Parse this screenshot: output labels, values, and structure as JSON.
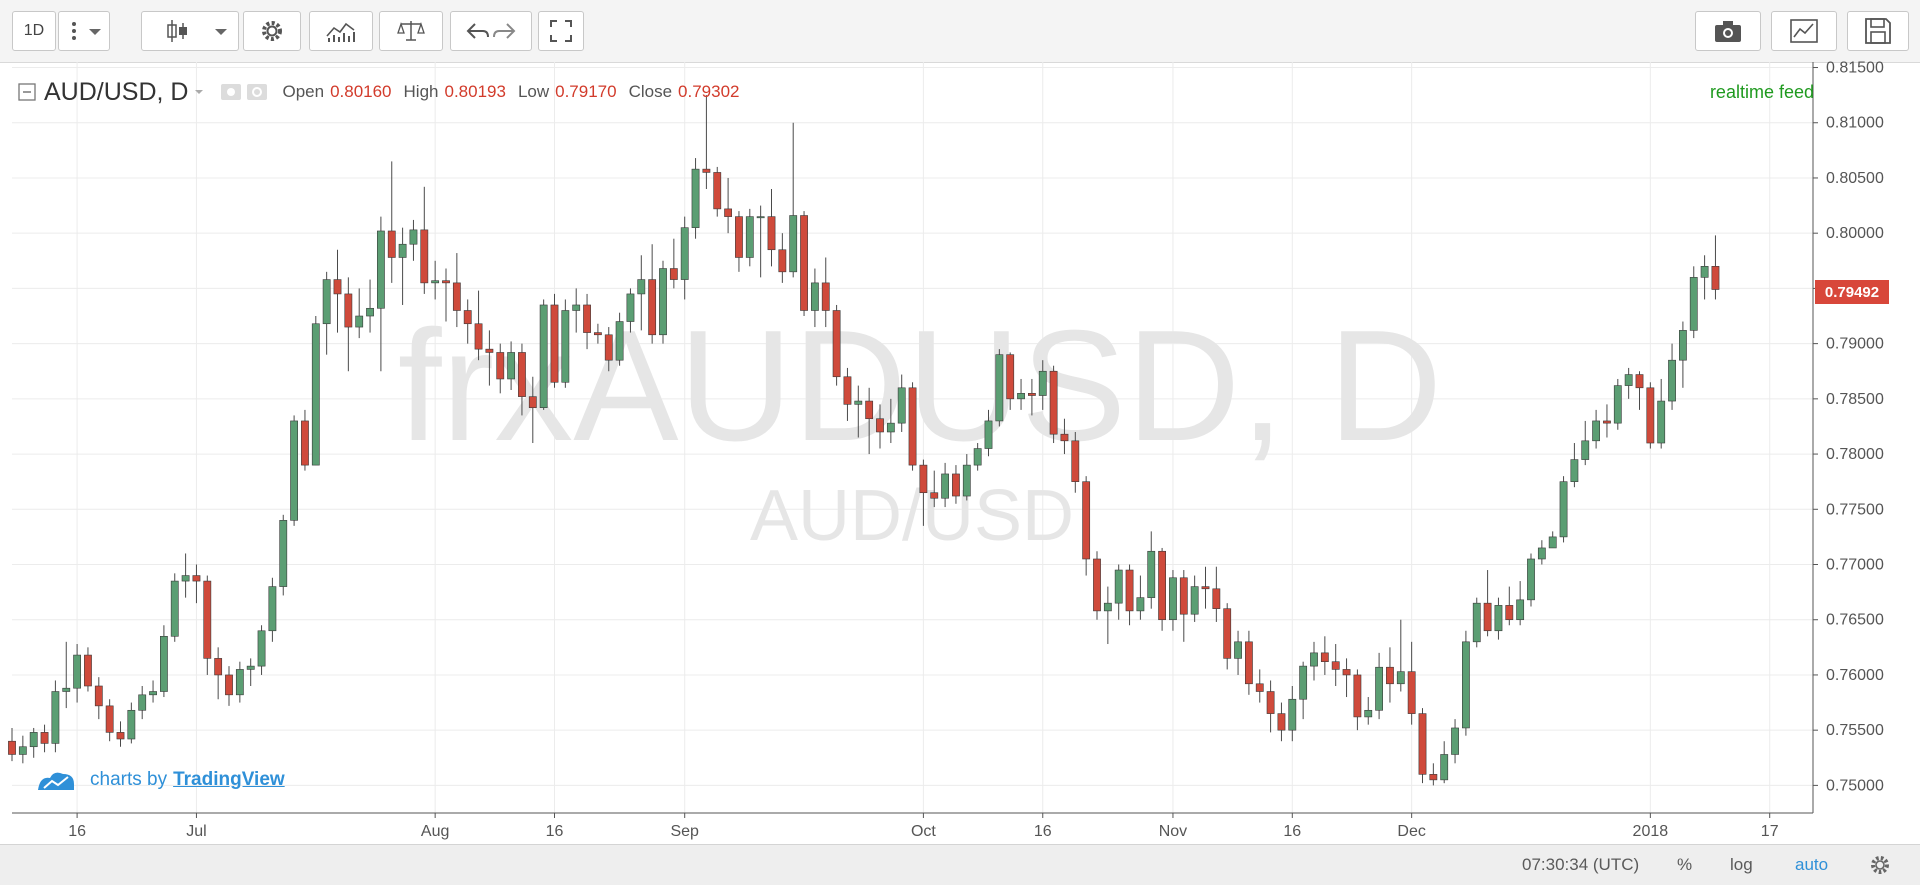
{
  "toolbar": {
    "interval": "1D"
  },
  "legend": {
    "symbol": "AUD/USD, D",
    "open_label": "Open",
    "open": "0.80160",
    "high_label": "High",
    "high": "0.80193",
    "low_label": "Low",
    "low": "0.79170",
    "close_label": "Close",
    "close": "0.79302"
  },
  "realtime_label": "realtime feed",
  "watermark": {
    "main": "frxAUDUSD, D",
    "sub": "AUD/USD"
  },
  "brand": {
    "prefix": "charts by",
    "name": "TradingView"
  },
  "last_price": "0.79492",
  "status_bar": {
    "time": "07:30:34 (UTC)",
    "percent": "%",
    "log": "log",
    "auto": "auto"
  },
  "colors": {
    "up": "#5b9e73",
    "down": "#cf4a3b",
    "accent": "#2f90d8",
    "realtime": "#1f9a1f"
  },
  "chart_data": {
    "type": "candlestick",
    "y_ticks": [
      "0.81500",
      "0.81000",
      "0.80500",
      "0.80000",
      "0.79500",
      "0.79000",
      "0.78500",
      "0.78000",
      "0.77500",
      "0.77000",
      "0.76500",
      "0.76000",
      "0.75500",
      "0.75000"
    ],
    "ylim": [
      0.7475,
      0.8155
    ],
    "x_ticks": [
      {
        "label": "16",
        "index": 6
      },
      {
        "label": "Jul",
        "index": 17
      },
      {
        "label": "Aug",
        "index": 39
      },
      {
        "label": "16",
        "index": 50
      },
      {
        "label": "Sep",
        "index": 62
      },
      {
        "label": "Oct",
        "index": 84
      },
      {
        "label": "16",
        "index": 95
      },
      {
        "label": "Nov",
        "index": 107
      },
      {
        "label": "16",
        "index": 118
      },
      {
        "label": "Dec",
        "index": 129
      },
      {
        "label": "2018",
        "index": 151
      },
      {
        "label": "17",
        "index": 162
      }
    ],
    "candles": [
      [
        0.754,
        0.7528,
        0.7552,
        0.7522
      ],
      [
        0.7528,
        0.7535,
        0.7545,
        0.752
      ],
      [
        0.7535,
        0.7548,
        0.7552,
        0.7525
      ],
      [
        0.7548,
        0.7538,
        0.7555,
        0.753
      ],
      [
        0.7538,
        0.7585,
        0.7595,
        0.753
      ],
      [
        0.7585,
        0.7588,
        0.763,
        0.757
      ],
      [
        0.7588,
        0.7618,
        0.7628,
        0.7575
      ],
      [
        0.7618,
        0.759,
        0.7625,
        0.7585
      ],
      [
        0.759,
        0.7572,
        0.7598,
        0.756
      ],
      [
        0.7572,
        0.7548,
        0.7578,
        0.754
      ],
      [
        0.7548,
        0.7542,
        0.7558,
        0.7535
      ],
      [
        0.7542,
        0.7568,
        0.7575,
        0.7538
      ],
      [
        0.7568,
        0.7582,
        0.759,
        0.756
      ],
      [
        0.7582,
        0.7585,
        0.7595,
        0.7575
      ],
      [
        0.7585,
        0.7635,
        0.7645,
        0.758
      ],
      [
        0.7635,
        0.7685,
        0.7692,
        0.763
      ],
      [
        0.7685,
        0.769,
        0.771,
        0.767
      ],
      [
        0.769,
        0.7685,
        0.77,
        0.7665
      ],
      [
        0.7685,
        0.7615,
        0.769,
        0.76
      ],
      [
        0.7615,
        0.76,
        0.7625,
        0.7578
      ],
      [
        0.76,
        0.7582,
        0.7608,
        0.7572
      ],
      [
        0.7582,
        0.7605,
        0.7612,
        0.7575
      ],
      [
        0.7605,
        0.7608,
        0.7615,
        0.759
      ],
      [
        0.7608,
        0.764,
        0.7645,
        0.76
      ],
      [
        0.764,
        0.768,
        0.7688,
        0.763
      ],
      [
        0.768,
        0.774,
        0.7745,
        0.7672
      ],
      [
        0.774,
        0.783,
        0.7835,
        0.7735
      ],
      [
        0.783,
        0.779,
        0.784,
        0.7785
      ],
      [
        0.779,
        0.7918,
        0.7925,
        0.779
      ],
      [
        0.7918,
        0.7958,
        0.7965,
        0.789
      ],
      [
        0.7958,
        0.7945,
        0.7985,
        0.791
      ],
      [
        0.7945,
        0.7915,
        0.796,
        0.7875
      ],
      [
        0.7915,
        0.7925,
        0.795,
        0.7905
      ],
      [
        0.7925,
        0.7932,
        0.7958,
        0.791
      ],
      [
        0.7932,
        0.8002,
        0.8015,
        0.7875
      ],
      [
        0.8002,
        0.7978,
        0.8065,
        0.7955
      ],
      [
        0.7978,
        0.799,
        0.8005,
        0.7935
      ],
      [
        0.799,
        0.8003,
        0.8012,
        0.7975
      ],
      [
        0.8003,
        0.7955,
        0.8042,
        0.7945
      ],
      [
        0.7955,
        0.7957,
        0.7975,
        0.794
      ],
      [
        0.7957,
        0.7955,
        0.7968,
        0.792
      ],
      [
        0.7955,
        0.793,
        0.7982,
        0.7915
      ],
      [
        0.793,
        0.7918,
        0.794,
        0.79
      ],
      [
        0.7918,
        0.7895,
        0.7948,
        0.7885
      ],
      [
        0.7895,
        0.7892,
        0.7912,
        0.7862
      ],
      [
        0.7892,
        0.7868,
        0.79,
        0.7855
      ],
      [
        0.7868,
        0.7892,
        0.7902,
        0.7858
      ],
      [
        0.7892,
        0.7852,
        0.79,
        0.7835
      ],
      [
        0.7852,
        0.7842,
        0.787,
        0.781
      ],
      [
        0.7842,
        0.7935,
        0.794,
        0.784
      ],
      [
        0.7935,
        0.7865,
        0.7945,
        0.786
      ],
      [
        0.7865,
        0.793,
        0.794,
        0.786
      ],
      [
        0.793,
        0.7935,
        0.795,
        0.791
      ],
      [
        0.7935,
        0.791,
        0.7945,
        0.7895
      ],
      [
        0.791,
        0.7908,
        0.7918,
        0.79
      ],
      [
        0.7908,
        0.7885,
        0.7915,
        0.7875
      ],
      [
        0.7885,
        0.792,
        0.7928,
        0.788
      ],
      [
        0.792,
        0.7945,
        0.795,
        0.791
      ],
      [
        0.7945,
        0.7958,
        0.798,
        0.7912
      ],
      [
        0.7958,
        0.7908,
        0.799,
        0.79
      ],
      [
        0.7908,
        0.7968,
        0.7975,
        0.79
      ],
      [
        0.7968,
        0.7958,
        0.7995,
        0.795
      ],
      [
        0.7958,
        0.8005,
        0.8015,
        0.794
      ],
      [
        0.8005,
        0.8058,
        0.8068,
        0.7995
      ],
      [
        0.8058,
        0.8055,
        0.8125,
        0.804
      ],
      [
        0.8055,
        0.8022,
        0.806,
        0.8015
      ],
      [
        0.8022,
        0.8015,
        0.805,
        0.8
      ],
      [
        0.8015,
        0.7978,
        0.802,
        0.7965
      ],
      [
        0.7978,
        0.8015,
        0.8022,
        0.797
      ],
      [
        0.8015,
        0.8015,
        0.8025,
        0.796
      ],
      [
        0.8015,
        0.7985,
        0.804,
        0.797
      ],
      [
        0.7985,
        0.7965,
        0.8,
        0.7955
      ],
      [
        0.7965,
        0.8016,
        0.81,
        0.796
      ],
      [
        0.8016,
        0.793,
        0.802,
        0.7925
      ],
      [
        0.793,
        0.7955,
        0.7968,
        0.7915
      ],
      [
        0.7955,
        0.793,
        0.7978,
        0.7915
      ],
      [
        0.793,
        0.787,
        0.7935,
        0.7862
      ],
      [
        0.787,
        0.7845,
        0.7878,
        0.783
      ],
      [
        0.7845,
        0.7848,
        0.7862,
        0.7815
      ],
      [
        0.7848,
        0.7832,
        0.786,
        0.78
      ],
      [
        0.7832,
        0.782,
        0.7845,
        0.7805
      ],
      [
        0.782,
        0.7828,
        0.785,
        0.781
      ],
      [
        0.7828,
        0.786,
        0.7872,
        0.782
      ],
      [
        0.786,
        0.779,
        0.7865,
        0.7785
      ],
      [
        0.779,
        0.7765,
        0.7795,
        0.7735
      ],
      [
        0.7765,
        0.776,
        0.7785,
        0.7752
      ],
      [
        0.776,
        0.7782,
        0.7792,
        0.7752
      ],
      [
        0.7782,
        0.7762,
        0.779,
        0.7755
      ],
      [
        0.7762,
        0.779,
        0.78,
        0.7758
      ],
      [
        0.779,
        0.7805,
        0.781,
        0.7785
      ],
      [
        0.7805,
        0.783,
        0.784,
        0.7798
      ],
      [
        0.783,
        0.789,
        0.7895,
        0.7825
      ],
      [
        0.789,
        0.785,
        0.7892,
        0.784
      ],
      [
        0.785,
        0.7855,
        0.7868,
        0.784
      ],
      [
        0.7855,
        0.7853,
        0.7868,
        0.7835
      ],
      [
        0.7853,
        0.7875,
        0.7885,
        0.784
      ],
      [
        0.7875,
        0.7818,
        0.788,
        0.781
      ],
      [
        0.7818,
        0.7812,
        0.7832,
        0.78
      ],
      [
        0.7812,
        0.7775,
        0.782,
        0.7765
      ],
      [
        0.7775,
        0.7705,
        0.778,
        0.769
      ],
      [
        0.7705,
        0.7658,
        0.7712,
        0.765
      ],
      [
        0.7658,
        0.7665,
        0.768,
        0.7628
      ],
      [
        0.7665,
        0.7695,
        0.77,
        0.765
      ],
      [
        0.7695,
        0.7658,
        0.77,
        0.7645
      ],
      [
        0.7658,
        0.767,
        0.769,
        0.765
      ],
      [
        0.767,
        0.7712,
        0.773,
        0.766
      ],
      [
        0.7712,
        0.765,
        0.7715,
        0.764
      ],
      [
        0.765,
        0.7688,
        0.7695,
        0.764
      ],
      [
        0.7688,
        0.7655,
        0.7695,
        0.763
      ],
      [
        0.7655,
        0.768,
        0.769,
        0.7648
      ],
      [
        0.768,
        0.7678,
        0.7698,
        0.766
      ],
      [
        0.7678,
        0.766,
        0.7698,
        0.7648
      ],
      [
        0.766,
        0.7615,
        0.7665,
        0.7605
      ],
      [
        0.7615,
        0.763,
        0.764,
        0.76
      ],
      [
        0.763,
        0.7592,
        0.764,
        0.7582
      ],
      [
        0.7592,
        0.7585,
        0.7605,
        0.7575
      ],
      [
        0.7585,
        0.7565,
        0.7595,
        0.7548
      ],
      [
        0.7565,
        0.755,
        0.7575,
        0.754
      ],
      [
        0.755,
        0.7578,
        0.759,
        0.754
      ],
      [
        0.7578,
        0.7608,
        0.7612,
        0.756
      ],
      [
        0.7608,
        0.762,
        0.763,
        0.7595
      ],
      [
        0.762,
        0.7612,
        0.7635,
        0.76
      ],
      [
        0.7612,
        0.7605,
        0.7628,
        0.759
      ],
      [
        0.7605,
        0.76,
        0.7615,
        0.758
      ],
      [
        0.76,
        0.7562,
        0.7605,
        0.755
      ],
      [
        0.7562,
        0.7568,
        0.758,
        0.7555
      ],
      [
        0.7568,
        0.7607,
        0.762,
        0.756
      ],
      [
        0.7607,
        0.7592,
        0.7625,
        0.7575
      ],
      [
        0.7592,
        0.7603,
        0.765,
        0.7585
      ],
      [
        0.7603,
        0.7565,
        0.763,
        0.7555
      ],
      [
        0.7565,
        0.751,
        0.757,
        0.7502
      ],
      [
        0.751,
        0.7505,
        0.752,
        0.75
      ],
      [
        0.7505,
        0.7528,
        0.754,
        0.7502
      ],
      [
        0.7528,
        0.7552,
        0.756,
        0.752
      ],
      [
        0.7552,
        0.763,
        0.764,
        0.7545
      ],
      [
        0.763,
        0.7665,
        0.767,
        0.7625
      ],
      [
        0.7665,
        0.764,
        0.7695,
        0.7635
      ],
      [
        0.764,
        0.7663,
        0.767,
        0.7632
      ],
      [
        0.7663,
        0.765,
        0.768,
        0.7645
      ],
      [
        0.765,
        0.7668,
        0.7685,
        0.7645
      ],
      [
        0.7668,
        0.7705,
        0.771,
        0.7662
      ],
      [
        0.7705,
        0.7715,
        0.7722,
        0.77
      ],
      [
        0.7715,
        0.7725,
        0.773,
        0.7715
      ],
      [
        0.7725,
        0.7775,
        0.778,
        0.772
      ],
      [
        0.7775,
        0.7795,
        0.781,
        0.777
      ],
      [
        0.7795,
        0.7812,
        0.783,
        0.779
      ],
      [
        0.7812,
        0.783,
        0.784,
        0.7805
      ],
      [
        0.783,
        0.7828,
        0.7845,
        0.7815
      ],
      [
        0.7828,
        0.7862,
        0.7868,
        0.7822
      ],
      [
        0.7862,
        0.7872,
        0.7878,
        0.785
      ],
      [
        0.7872,
        0.786,
        0.7875,
        0.784
      ],
      [
        0.786,
        0.781,
        0.7865,
        0.7805
      ],
      [
        0.781,
        0.7848,
        0.7868,
        0.7805
      ],
      [
        0.7848,
        0.7885,
        0.79,
        0.784
      ],
      [
        0.7885,
        0.7912,
        0.792,
        0.786
      ],
      [
        0.7912,
        0.796,
        0.797,
        0.7905
      ],
      [
        0.796,
        0.797,
        0.798,
        0.794
      ],
      [
        0.797,
        0.7949,
        0.7998,
        0.794
      ]
    ]
  }
}
